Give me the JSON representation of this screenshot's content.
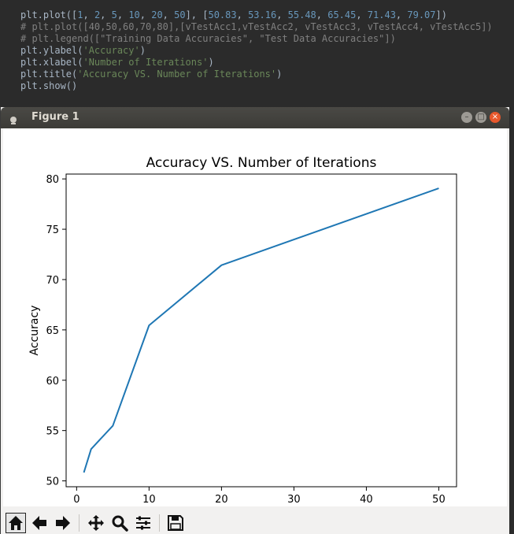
{
  "editor": {
    "lines": [
      [
        {
          "t": "plt.plot([",
          "c": "plain"
        },
        {
          "t": "1",
          "c": "num"
        },
        {
          "t": ", ",
          "c": "plain"
        },
        {
          "t": "2",
          "c": "num"
        },
        {
          "t": ", ",
          "c": "plain"
        },
        {
          "t": "5",
          "c": "num"
        },
        {
          "t": ", ",
          "c": "plain"
        },
        {
          "t": "10",
          "c": "num"
        },
        {
          "t": ", ",
          "c": "plain"
        },
        {
          "t": "20",
          "c": "num"
        },
        {
          "t": ", ",
          "c": "plain"
        },
        {
          "t": "50",
          "c": "num"
        },
        {
          "t": "], [",
          "c": "plain"
        },
        {
          "t": "50.83",
          "c": "num"
        },
        {
          "t": ", ",
          "c": "plain"
        },
        {
          "t": "53.16",
          "c": "num"
        },
        {
          "t": ", ",
          "c": "plain"
        },
        {
          "t": "55.48",
          "c": "num"
        },
        {
          "t": ", ",
          "c": "plain"
        },
        {
          "t": "65.45",
          "c": "num"
        },
        {
          "t": ", ",
          "c": "plain"
        },
        {
          "t": "71.43",
          "c": "num"
        },
        {
          "t": ", ",
          "c": "plain"
        },
        {
          "t": "79.07",
          "c": "num"
        },
        {
          "t": "])",
          "c": "plain"
        }
      ],
      [
        {
          "t": "# plt.plot([40,50,60,70,80],[vTestAcc1,vTestAcc2, vTestAcc3, vTestAcc4, vTestAcc5])",
          "c": "cmt"
        }
      ],
      [
        {
          "t": "# plt.legend([\"Training Data Accuracies\", \"Test Data Accuracies\"])",
          "c": "cmt"
        }
      ],
      [
        {
          "t": "plt.ylabel(",
          "c": "plain"
        },
        {
          "t": "'Accuracy'",
          "c": "str"
        },
        {
          "t": ")",
          "c": "plain"
        }
      ],
      [
        {
          "t": "plt.xlabel(",
          "c": "plain"
        },
        {
          "t": "'Number of Iterations'",
          "c": "str"
        },
        {
          "t": ")",
          "c": "plain"
        }
      ],
      [
        {
          "t": "plt.title(",
          "c": "plain"
        },
        {
          "t": "'Accuracy VS. Number of Iterations'",
          "c": "str"
        },
        {
          "t": ")",
          "c": "plain"
        }
      ],
      [
        {
          "t": "plt.show()",
          "c": "plain"
        }
      ]
    ]
  },
  "window": {
    "title": "Figure 1",
    "buttons": {
      "minimize": "–",
      "maximize": "□",
      "close": "×"
    }
  },
  "toolbar": {
    "items": [
      "home-icon",
      "back-arrow-icon",
      "forward-arrow-icon",
      "pan-icon",
      "zoom-icon",
      "subplots-icon",
      "save-icon"
    ]
  },
  "colors": {
    "line": "#1f77b4",
    "editor_bg": "#2b2b2b",
    "number": "#6897bb",
    "string": "#6a8759",
    "comment": "#808080"
  },
  "chart_data": {
    "type": "line",
    "title": "Accuracy VS. Number of Iterations",
    "xlabel": "Number of Iterations",
    "ylabel": "Accuracy",
    "x": [
      1,
      2,
      5,
      10,
      20,
      50
    ],
    "series": [
      {
        "values": [
          50.83,
          53.16,
          55.48,
          65.45,
          71.43,
          79.07
        ]
      }
    ],
    "xticks": [
      0,
      10,
      20,
      30,
      40,
      50
    ],
    "yticks": [
      50,
      55,
      60,
      65,
      70,
      75,
      80
    ],
    "xlim": [
      -1.45,
      52.45
    ],
    "ylim": [
      49.418,
      80.482
    ],
    "grid": false
  }
}
